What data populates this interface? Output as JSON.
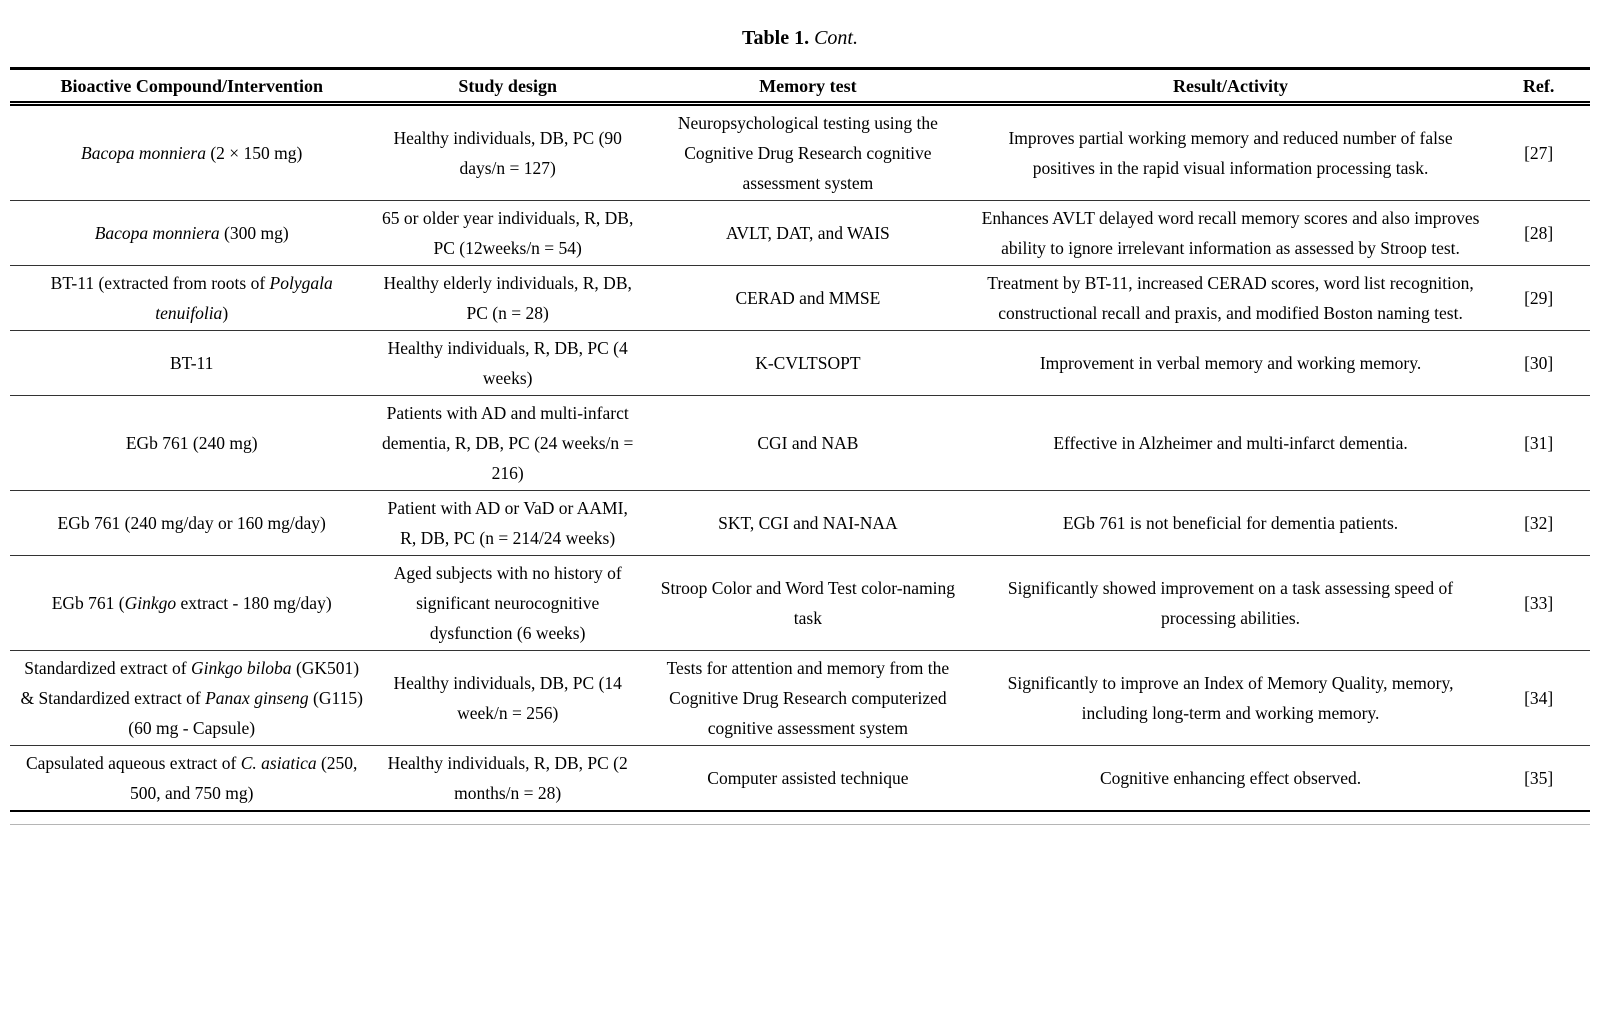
{
  "title": {
    "label": "Table 1.",
    "cont": "Cont."
  },
  "table": {
    "columns": [
      {
        "key": "compound",
        "label": "Bioactive Compound/Intervention"
      },
      {
        "key": "design",
        "label": "Study design"
      },
      {
        "key": "test",
        "label": "Memory test"
      },
      {
        "key": "result",
        "label": "Result/Activity"
      },
      {
        "key": "ref",
        "label": "Ref."
      }
    ],
    "rows": [
      {
        "compound": [
          {
            "text": "Bacopa monniera",
            "italic": true
          },
          {
            "text": " (2 × 150 mg)",
            "italic": false
          }
        ],
        "design": "Healthy individuals, DB, PC (90 days/n = 127)",
        "test": "Neuropsychological testing using the Cognitive Drug Research cognitive assessment system",
        "result": "Improves partial working memory and reduced number of false positives in the rapid visual information processing task.",
        "ref": "[27]"
      },
      {
        "compound": [
          {
            "text": "Bacopa monniera",
            "italic": true
          },
          {
            "text": " (300 mg)",
            "italic": false
          }
        ],
        "design": "65 or older year individuals, R, DB, PC (12weeks/n = 54)",
        "test": "AVLT, DAT, and WAIS",
        "result": "Enhances AVLT delayed word recall memory scores and also improves ability to ignore irrelevant information as assessed by Stroop test.",
        "ref": "[28]"
      },
      {
        "compound": [
          {
            "text": "BT-11 (extracted from roots of ",
            "italic": false
          },
          {
            "text": "Polygala tenuifolia",
            "italic": true
          },
          {
            "text": ")",
            "italic": false
          }
        ],
        "design": "Healthy elderly individuals, R, DB, PC (n = 28)",
        "test": "CERAD and MMSE",
        "result": "Treatment by BT-11, increased CERAD scores, word list recognition, constructional recall and praxis, and modified Boston naming test.",
        "ref": "[29]"
      },
      {
        "compound": [
          {
            "text": "BT-11",
            "italic": false
          }
        ],
        "design": "Healthy individuals, R, DB, PC (4 weeks)",
        "test": "K-CVLTSOPT",
        "result": "Improvement in verbal memory and working memory.",
        "ref": "[30]"
      },
      {
        "compound": [
          {
            "text": "EGb 761 (240 mg)",
            "italic": false
          }
        ],
        "design": "Patients with AD and multi-infarct dementia, R, DB, PC (24 weeks/n = 216)",
        "test": "CGI and NAB",
        "result": "Effective in Alzheimer and multi-infarct dementia.",
        "ref": "[31]"
      },
      {
        "compound": [
          {
            "text": "EGb 761 (240 mg/day or 160 mg/day)",
            "italic": false
          }
        ],
        "design": "Patient with AD or VaD or AAMI, R, DB, PC (n = 214/24 weeks)",
        "test": "SKT, CGI and NAI-NAA",
        "result": "EGb 761 is not beneficial for dementia patients.",
        "ref": "[32]"
      },
      {
        "compound": [
          {
            "text": "EGb 761 (",
            "italic": false
          },
          {
            "text": "Ginkgo",
            "italic": true
          },
          {
            "text": " extract - 180 mg/day)",
            "italic": false
          }
        ],
        "design": "Aged subjects with no history of significant neurocognitive dysfunction (6 weeks)",
        "test": "Stroop Color and Word Test color-naming task",
        "result": "Significantly showed improvement on a task assessing speed of processing abilities.",
        "ref": "[33]"
      },
      {
        "compound": [
          {
            "text": "Standardized extract of ",
            "italic": false
          },
          {
            "text": "Ginkgo biloba",
            "italic": true
          },
          {
            "text": " (GK501) & Standardized extract of ",
            "italic": false
          },
          {
            "text": "Panax ginseng",
            "italic": true
          },
          {
            "text": " (G115) (60 mg - Capsule)",
            "italic": false
          }
        ],
        "design": "Healthy individuals, DB, PC (14 week/n = 256)",
        "test": "Tests for attention and memory from the Cognitive Drug Research computerized cognitive assessment system",
        "result": "Significantly to improve an Index of Memory Quality, memory, including long-term and working memory.",
        "ref": "[34]"
      },
      {
        "compound": [
          {
            "text": "Capsulated aqueous extract of ",
            "italic": false
          },
          {
            "text": "C. asiatica",
            "italic": true
          },
          {
            "text": " (250, 500, and 750 mg)",
            "italic": false
          }
        ],
        "design": "Healthy individuals, R, DB, PC (2 months/n = 28)",
        "test": "Computer assisted technique",
        "result": "Cognitive enhancing effect observed.",
        "ref": "[35]"
      }
    ]
  }
}
